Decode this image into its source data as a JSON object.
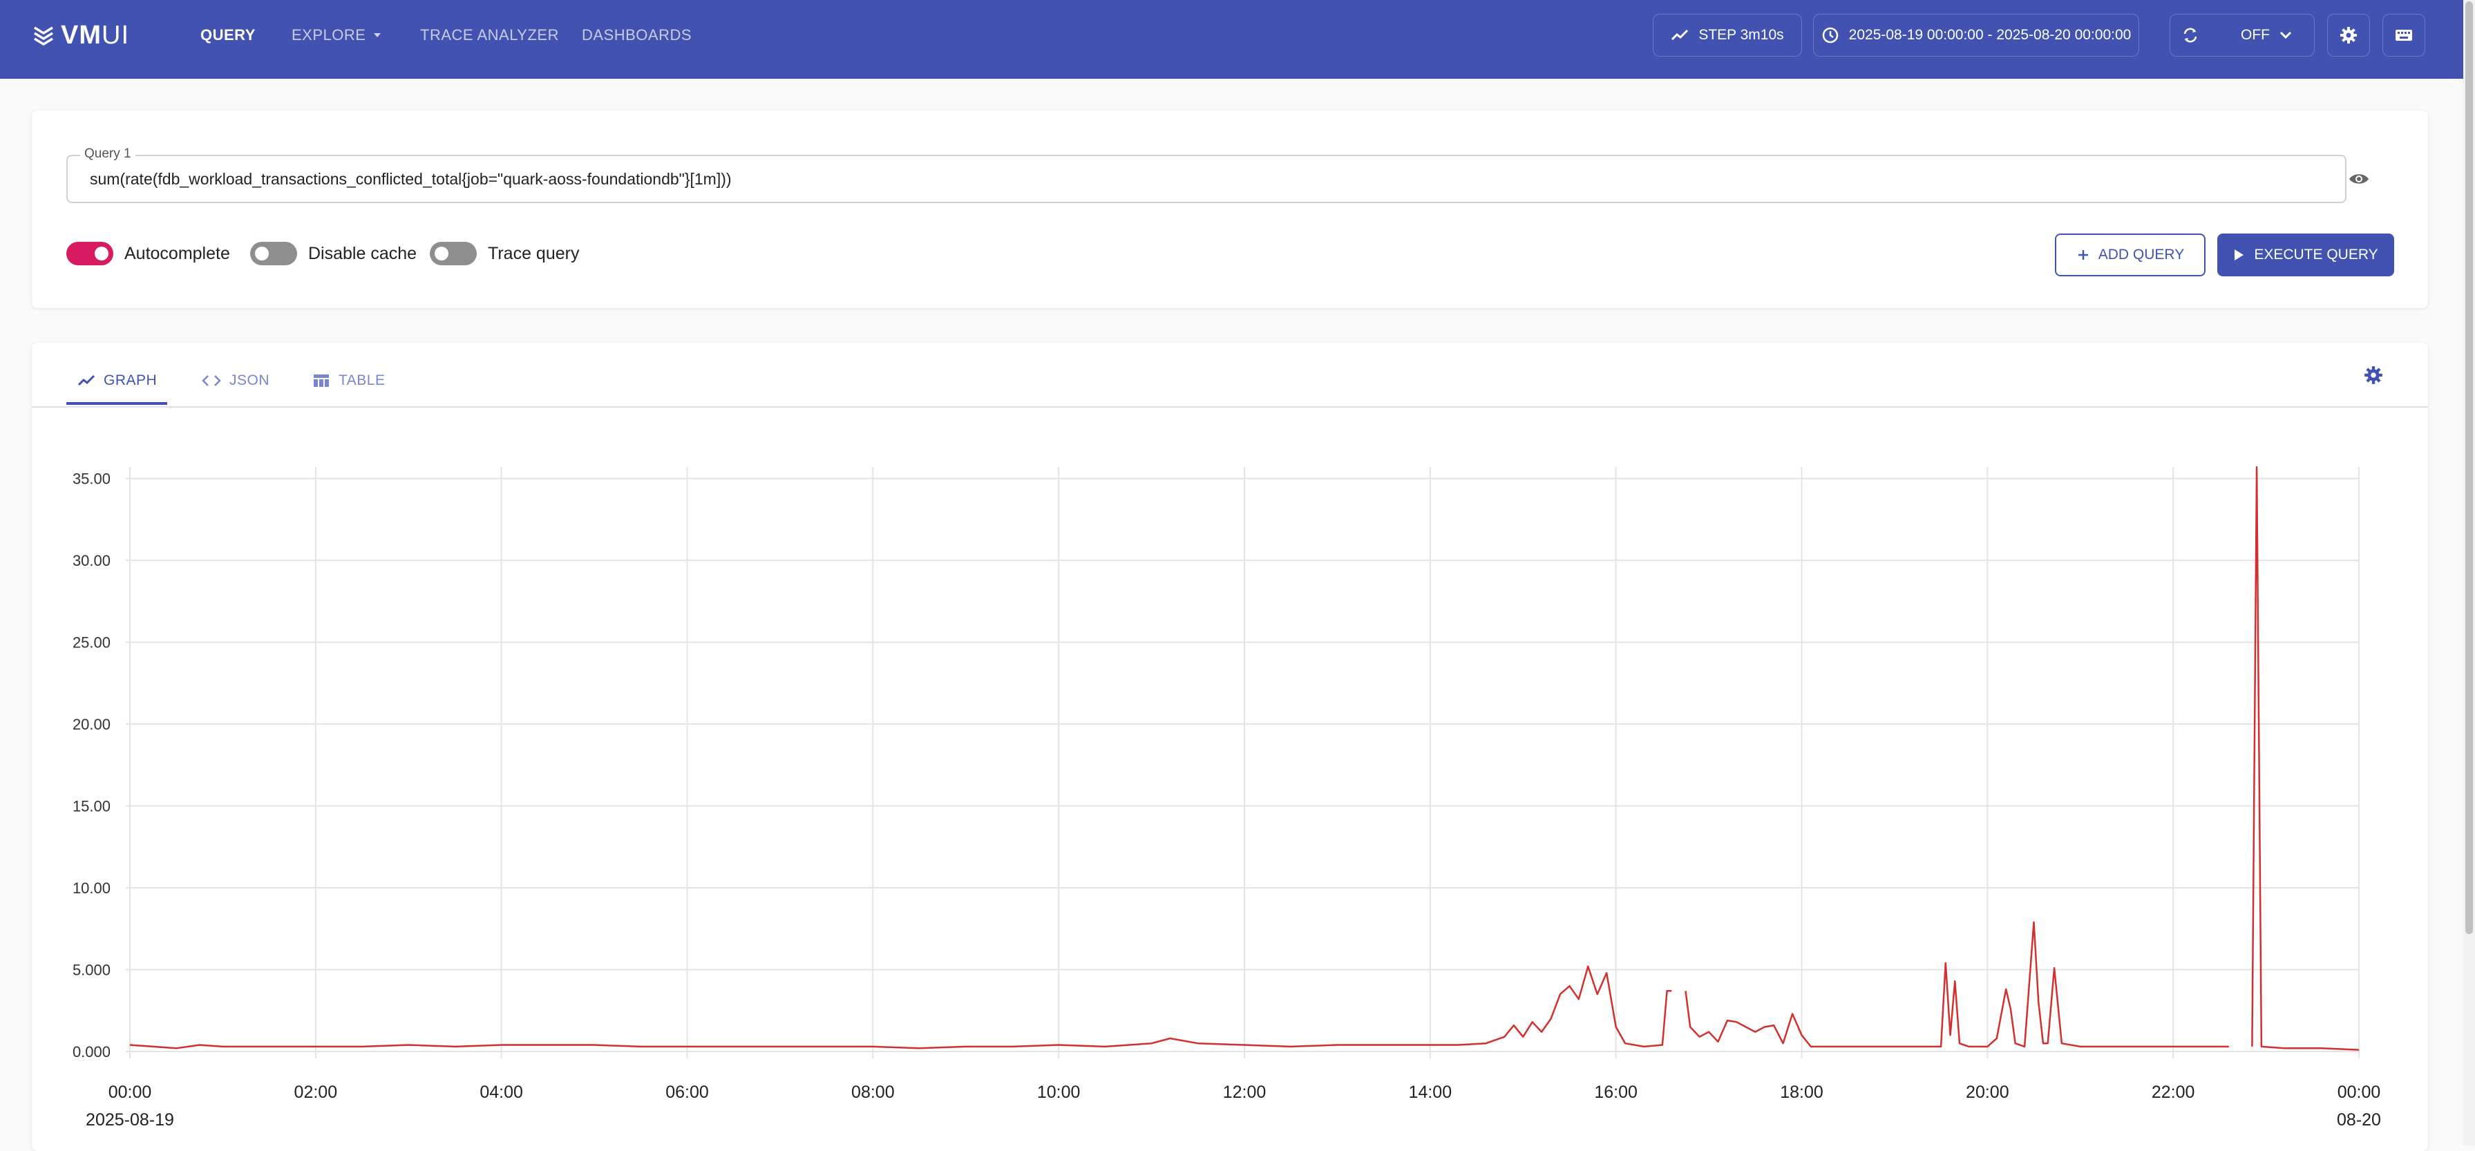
{
  "header": {
    "logo_bold": "VM",
    "logo_light": "UI",
    "nav": [
      {
        "label": "QUERY",
        "active": true
      },
      {
        "label": "EXPLORE",
        "active": false,
        "has_dropdown": true
      },
      {
        "label": "TRACE ANALYZER",
        "active": false
      },
      {
        "label": "DASHBOARDS",
        "active": false
      }
    ],
    "step_label": "STEP 3m10s",
    "time_range": "2025-08-19 00:00:00 - 2025-08-20 00:00:00",
    "refresh_label": "OFF",
    "accent_color": "#4252b1"
  },
  "query_panel": {
    "query_label": "Query 1",
    "query_value": "sum(rate(fdb_workload_transactions_conflicted_total{job=\"quark-aoss-foundationdb\"}[1m]))",
    "toggles": [
      {
        "label": "Autocomplete",
        "on": true
      },
      {
        "label": "Disable cache",
        "on": false
      },
      {
        "label": "Trace query",
        "on": false
      }
    ],
    "add_query_label": "ADD QUERY",
    "execute_query_label": "EXECUTE QUERY"
  },
  "result_tabs": [
    {
      "label": "GRAPH",
      "icon": "line-chart-icon",
      "active": true
    },
    {
      "label": "JSON",
      "icon": "code-icon",
      "active": false
    },
    {
      "label": "TABLE",
      "icon": "table-icon",
      "active": false
    }
  ],
  "chart_data": {
    "type": "line",
    "title": "",
    "xlabel": "",
    "ylabel": "",
    "y_ticks": [
      "0.000",
      "5.000",
      "10.00",
      "15.00",
      "20.00",
      "25.00",
      "30.00",
      "35.00"
    ],
    "ylim": [
      0,
      36
    ],
    "x_ticks": [
      "00:00",
      "02:00",
      "04:00",
      "06:00",
      "08:00",
      "10:00",
      "12:00",
      "14:00",
      "16:00",
      "18:00",
      "20:00",
      "22:00",
      "00:00"
    ],
    "x_date_labels": [
      {
        "tick_index": 0,
        "label": "2025-08-19"
      },
      {
        "tick_index": 12,
        "label": "08-20"
      }
    ],
    "x_unit": "hours since 2025-08-19 00:00",
    "xlim": [
      0,
      24
    ],
    "grid": true,
    "series": [
      {
        "color": "#d32f2f",
        "segments": [
          [
            [
              0,
              0.4
            ],
            [
              0.25,
              0.3
            ],
            [
              0.5,
              0.2
            ],
            [
              0.75,
              0.4
            ],
            [
              1,
              0.3
            ],
            [
              1.5,
              0.3
            ],
            [
              2,
              0.3
            ],
            [
              2.5,
              0.3
            ],
            [
              3,
              0.4
            ],
            [
              3.5,
              0.3
            ],
            [
              4,
              0.4
            ],
            [
              4.5,
              0.4
            ],
            [
              5,
              0.4
            ],
            [
              5.5,
              0.3
            ],
            [
              6,
              0.3
            ],
            [
              6.5,
              0.3
            ],
            [
              7,
              0.3
            ],
            [
              7.5,
              0.3
            ],
            [
              8,
              0.3
            ],
            [
              8.5,
              0.2
            ],
            [
              9,
              0.3
            ],
            [
              9.5,
              0.3
            ],
            [
              10,
              0.4
            ],
            [
              10.5,
              0.3
            ],
            [
              11,
              0.5
            ],
            [
              11.2,
              0.8
            ],
            [
              11.5,
              0.5
            ],
            [
              12,
              0.4
            ],
            [
              12.5,
              0.3
            ],
            [
              13,
              0.4
            ],
            [
              13.5,
              0.4
            ],
            [
              14,
              0.4
            ],
            [
              14.3,
              0.4
            ],
            [
              14.6,
              0.5
            ],
            [
              14.8,
              0.9
            ],
            [
              14.9,
              1.6
            ],
            [
              15,
              0.9
            ],
            [
              15.1,
              1.8
            ],
            [
              15.2,
              1.2
            ],
            [
              15.3,
              2.0
            ],
            [
              15.4,
              3.5
            ],
            [
              15.5,
              4.0
            ],
            [
              15.6,
              3.2
            ],
            [
              15.7,
              5.2
            ],
            [
              15.8,
              3.5
            ],
            [
              15.9,
              4.8
            ],
            [
              16,
              1.5
            ],
            [
              16.1,
              0.5
            ],
            [
              16.2,
              0.4
            ],
            [
              16.3,
              0.3
            ],
            [
              16.5,
              0.4
            ],
            [
              16.55,
              3.7
            ],
            [
              16.6,
              3.7
            ]
          ],
          [
            [
              16.75,
              3.7
            ],
            [
              16.8,
              1.5
            ],
            [
              16.9,
              0.9
            ],
            [
              17,
              1.2
            ],
            [
              17.1,
              0.6
            ],
            [
              17.2,
              1.9
            ],
            [
              17.3,
              1.8
            ],
            [
              17.4,
              1.5
            ],
            [
              17.5,
              1.2
            ],
            [
              17.6,
              1.5
            ],
            [
              17.7,
              1.6
            ],
            [
              17.8,
              0.5
            ],
            [
              17.9,
              2.3
            ],
            [
              18,
              1.0
            ],
            [
              18.1,
              0.3
            ],
            [
              18.3,
              0.3
            ],
            [
              18.5,
              0.3
            ],
            [
              18.8,
              0.3
            ],
            [
              19,
              0.3
            ],
            [
              19.3,
              0.3
            ],
            [
              19.5,
              0.3
            ],
            [
              19.55,
              5.4
            ],
            [
              19.6,
              1.0
            ],
            [
              19.65,
              4.3
            ],
            [
              19.7,
              0.5
            ],
            [
              19.8,
              0.3
            ],
            [
              19.9,
              0.3
            ],
            [
              20,
              0.3
            ],
            [
              20.1,
              0.8
            ],
            [
              20.2,
              3.8
            ],
            [
              20.25,
              2.6
            ],
            [
              20.3,
              0.5
            ],
            [
              20.4,
              0.3
            ],
            [
              20.5,
              7.9
            ],
            [
              20.55,
              3.0
            ],
            [
              20.6,
              0.5
            ],
            [
              20.65,
              0.5
            ],
            [
              20.72,
              5.1
            ],
            [
              20.8,
              0.5
            ],
            [
              21,
              0.3
            ],
            [
              21.5,
              0.3
            ],
            [
              22,
              0.3
            ],
            [
              22.3,
              0.3
            ],
            [
              22.6,
              0.3
            ]
          ],
          [
            [
              22.85,
              0.3
            ],
            [
              22.9,
              35.7
            ],
            [
              22.95,
              0.3
            ],
            [
              23.2,
              0.2
            ],
            [
              23.6,
              0.2
            ],
            [
              24,
              0.1
            ]
          ]
        ]
      }
    ]
  }
}
